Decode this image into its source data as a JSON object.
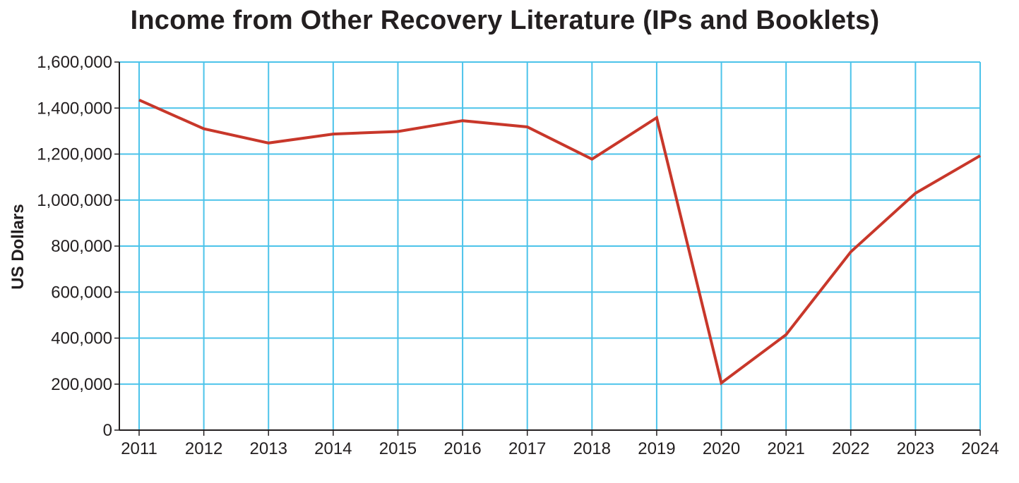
{
  "chart_data": {
    "type": "line",
    "title": "Income from Other Recovery Literature (IPs and Booklets)",
    "xlabel": "",
    "ylabel": "US Dollars",
    "x": [
      "2011",
      "2012",
      "2013",
      "2014",
      "2015",
      "2016",
      "2017",
      "2018",
      "2019",
      "2020",
      "2021",
      "2022",
      "2023",
      "2024"
    ],
    "series": [
      {
        "values": [
          1435000,
          1310000,
          1248000,
          1287000,
          1298000,
          1345000,
          1318000,
          1178000,
          1358000,
          205000,
          415000,
          775000,
          1030000,
          1193000
        ]
      }
    ],
    "ylim": [
      0,
      1600000
    ],
    "yticks": [
      0,
      200000,
      400000,
      600000,
      800000,
      1000000,
      1200000,
      1400000,
      1600000
    ],
    "ytick_labels": [
      "0",
      "200,000",
      "400,000",
      "600,000",
      "800,000",
      "1,000,000",
      "1,200,000",
      "1,400,000",
      "1,600,000"
    ],
    "grid": true,
    "legend": "none",
    "colors": {
      "line": "#c8372a",
      "grid": "#4cc3ea",
      "axis": "#231f20",
      "text": "#231f20"
    }
  }
}
